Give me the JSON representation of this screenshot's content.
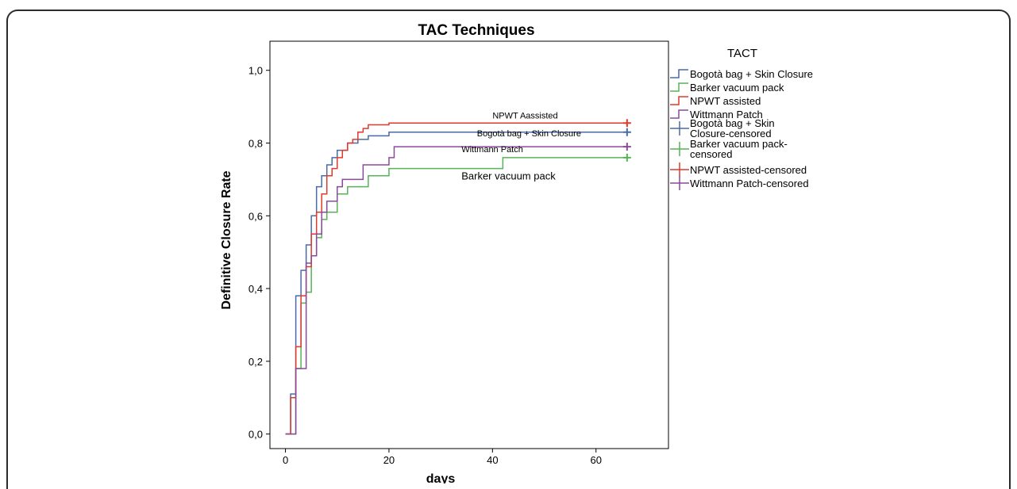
{
  "chart_data": {
    "type": "line",
    "title": "TAC Techniques",
    "xlabel": "days",
    "ylabel": "Definitive Closure Rate",
    "xlim": [
      -3,
      74
    ],
    "ylim": [
      -0.04,
      1.08
    ],
    "x_ticks": [
      0,
      20,
      40,
      60
    ],
    "x_tick_labels": [
      "0",
      "20",
      "40",
      "60"
    ],
    "y_ticks": [
      0.0,
      0.2,
      0.4,
      0.6,
      0.8,
      1.0
    ],
    "y_tick_labels": [
      "0,0",
      "0,2",
      "0,4",
      "0,6",
      "0,8",
      "1,0"
    ],
    "grid": false,
    "step": true,
    "legend": {
      "title": "TACT",
      "placement": "right",
      "entries": [
        {
          "label": "Bogotà bag + Skin Closure",
          "color": "#4a6aa6",
          "marker": "step"
        },
        {
          "label": "Barker vacuum pack",
          "color": "#56b356",
          "marker": "step"
        },
        {
          "label": "NPWT assisted",
          "color": "#e03a2e",
          "marker": "step"
        },
        {
          "label": "Wittmann Patch",
          "color": "#8a4a9a",
          "marker": "step"
        },
        {
          "label": "Bogotà bag + Skin Closure-censored",
          "color": "#4a6aa6",
          "marker": "plus"
        },
        {
          "label": "Barker vacuum pack-censored",
          "color": "#56b356",
          "marker": "plus"
        },
        {
          "label": "NPWT assisted-censored",
          "color": "#e03a2e",
          "marker": "plus"
        },
        {
          "label": "Wittmann Patch-censored",
          "color": "#8a4a9a",
          "marker": "plus"
        }
      ]
    },
    "series": [
      {
        "name": "Bogotà bag + Skin Closure",
        "color": "#4a6aa6",
        "x": [
          0,
          1,
          2,
          3,
          4,
          5,
          6,
          7,
          8,
          9,
          10,
          12,
          14,
          16,
          20,
          66
        ],
        "y": [
          0,
          0.11,
          0.38,
          0.45,
          0.52,
          0.6,
          0.68,
          0.71,
          0.74,
          0.76,
          0.78,
          0.8,
          0.81,
          0.82,
          0.83,
          0.83
        ],
        "censored_x": [
          66
        ],
        "label": "Bogotà bag + Skin Closure",
        "label_at": [
          37,
          0.818
        ]
      },
      {
        "name": "Barker vacuum pack",
        "color": "#56b356",
        "x": [
          0,
          2,
          3,
          4,
          5,
          6,
          7,
          8,
          10,
          12,
          14,
          16,
          18,
          20,
          42,
          66
        ],
        "y": [
          0,
          0.18,
          0.36,
          0.39,
          0.49,
          0.54,
          0.59,
          0.61,
          0.66,
          0.68,
          0.68,
          0.71,
          0.71,
          0.73,
          0.76,
          0.76
        ],
        "censored_x": [
          66
        ],
        "label": "Barker vacuum pack",
        "label_at": [
          34,
          0.7
        ]
      },
      {
        "name": "NPWT assisted",
        "color": "#e03a2e",
        "x": [
          0,
          1,
          2,
          3,
          4,
          5,
          6,
          7,
          8,
          9,
          10,
          11,
          12,
          13,
          14,
          15,
          16,
          17,
          20,
          66
        ],
        "y": [
          0,
          0.1,
          0.24,
          0.38,
          0.46,
          0.55,
          0.61,
          0.66,
          0.71,
          0.73,
          0.76,
          0.78,
          0.8,
          0.81,
          0.83,
          0.84,
          0.85,
          0.85,
          0.855,
          0.855
        ],
        "censored_x": [
          66
        ],
        "label": "NPWT Aassisted",
        "label_at": [
          40,
          0.868
        ]
      },
      {
        "name": "Wittmann Patch",
        "color": "#8a4a9a",
        "x": [
          0,
          2,
          4,
          5,
          6,
          7,
          8,
          10,
          11,
          12,
          13,
          15,
          20,
          21,
          66
        ],
        "y": [
          0,
          0.18,
          0.47,
          0.49,
          0.55,
          0.61,
          0.64,
          0.68,
          0.7,
          0.7,
          0.7,
          0.74,
          0.76,
          0.79,
          0.79
        ],
        "censored_x": [
          66
        ],
        "label": "Wittmann Patch",
        "label_at": [
          34,
          0.775
        ]
      }
    ]
  }
}
